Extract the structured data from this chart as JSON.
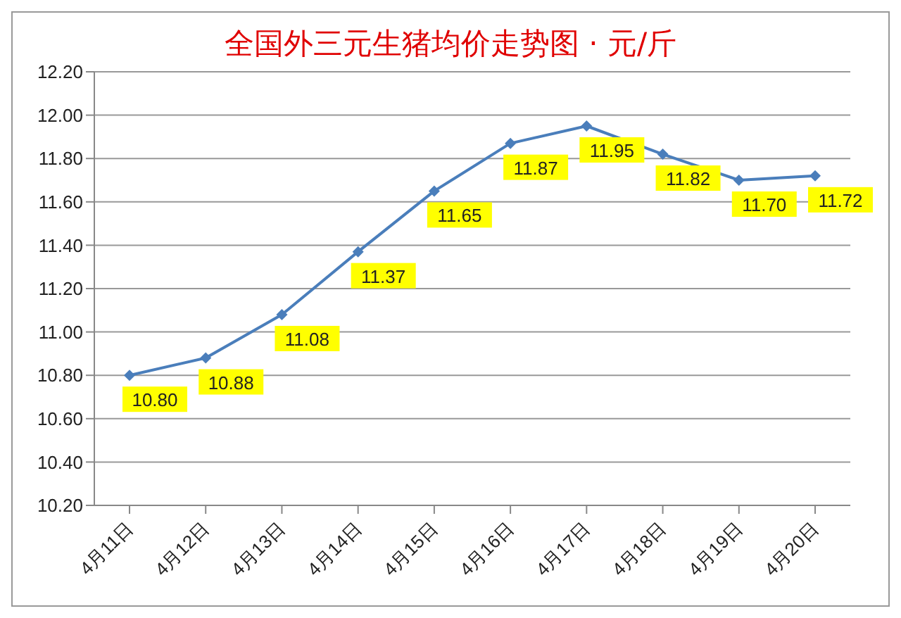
{
  "chart_data": {
    "type": "line",
    "title": "全国外三元生猪均价走势图 · 元/斤",
    "categories": [
      "4月11日",
      "4月12日",
      "4月13日",
      "4月14日",
      "4月15日",
      "4月16日",
      "4月17日",
      "4月18日",
      "4月19日",
      "4月20日"
    ],
    "series": [
      {
        "color": "#4a7ebb",
        "values": [
          10.8,
          10.88,
          11.08,
          11.37,
          11.65,
          11.87,
          11.95,
          11.82,
          11.7,
          11.72
        ],
        "value_labels": [
          "10.80",
          "10.88",
          "11.08",
          "11.37",
          "11.65",
          "11.87",
          "11.95",
          "11.82",
          "11.70",
          "11.72"
        ]
      }
    ],
    "ylim": [
      10.2,
      12.2
    ],
    "yticks": [
      {
        "value": 10.2,
        "label": "10.20"
      },
      {
        "value": 10.4,
        "label": "10.40"
      },
      {
        "value": 10.6,
        "label": "10.60"
      },
      {
        "value": 10.8,
        "label": "10.80"
      },
      {
        "value": 11.0,
        "label": "11.00"
      },
      {
        "value": 11.2,
        "label": "11.20"
      },
      {
        "value": 11.4,
        "label": "11.40"
      },
      {
        "value": 11.6,
        "label": "11.60"
      },
      {
        "value": 11.8,
        "label": "11.80"
      },
      {
        "value": 12.0,
        "label": "12.00"
      },
      {
        "value": 12.2,
        "label": "12.20"
      }
    ],
    "grid": "y",
    "marker": "diamond",
    "line_style": "solid",
    "legend": false
  }
}
